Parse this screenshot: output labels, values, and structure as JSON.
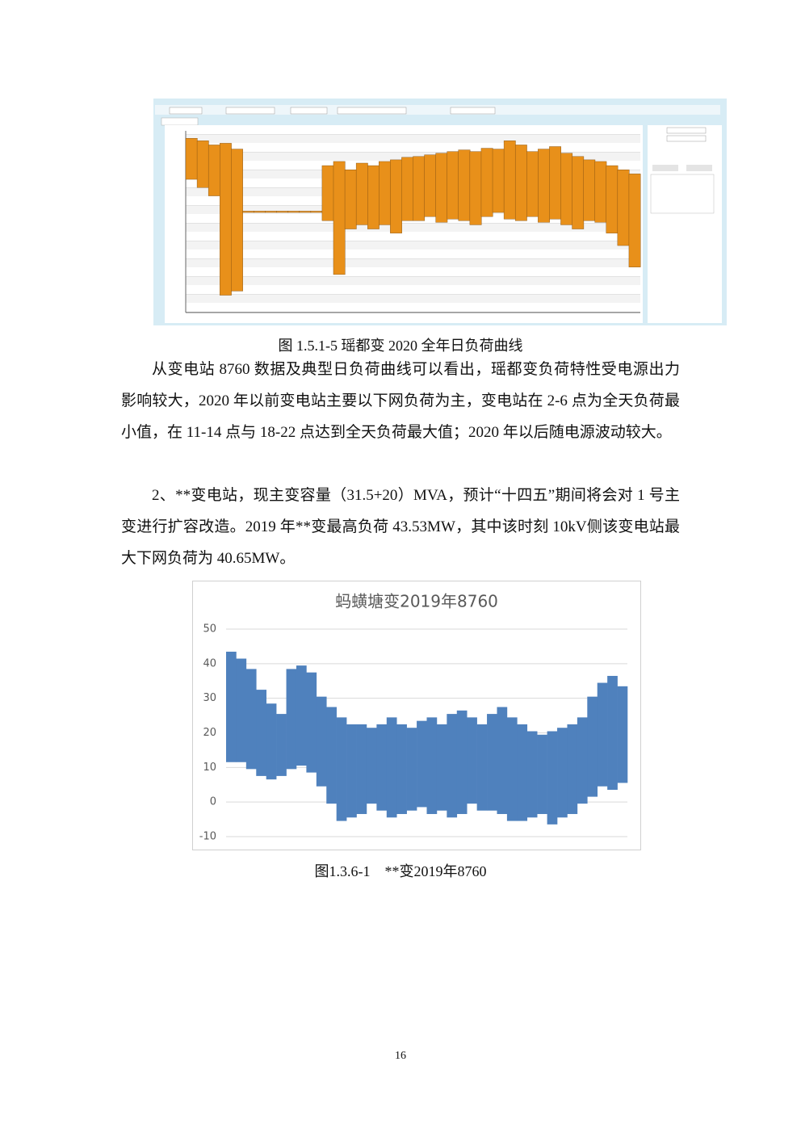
{
  "captions": [
    "图 1.5.1-5  瑶都变 2020 全年日负荷曲线",
    "图1.3.6-1　**变2019年8760"
  ],
  "paragraphs": [
    "从变电站 8760 数据及典型日负荷曲线可以看出，瑶都变负荷特性受电源出力影响较大，2020 年以前变电站主要以下网负荷为主，变电站在 2-6 点为全天负荷最小值，在 11-14 点与 18-22 点达到全天负荷最大值；2020 年以后随电源波动较大。",
    "2、**变电站，现主变容量（31.5+20）MVA，预计“十四五”期间将会对 1 号主变进行扩容改造。2019 年**变最高负荷 43.53MW，其中该时刻 10kV侧该变电站最大下网负荷为 40.65MW。"
  ],
  "page_number": "16",
  "chart_data": [
    {
      "type": "band",
      "ylim": [
        -110,
        90
      ],
      "series": [
        {
          "color": "#e8901a",
          "values": [
            88,
            85,
            80,
            82,
            75,
            0,
            0,
            0,
            0,
            0,
            0,
            0,
            55,
            60,
            50,
            58,
            55,
            60,
            62,
            65,
            66,
            68,
            70,
            72,
            74,
            72,
            76,
            75,
            85,
            80,
            72,
            75,
            78,
            70,
            66,
            62,
            60,
            55,
            50,
            45
          ]
        },
        {
          "color": "#e8901a",
          "values": [
            40,
            30,
            20,
            -100,
            -95,
            0,
            0,
            0,
            0,
            0,
            0,
            0,
            -10,
            -75,
            -20,
            -15,
            -20,
            -15,
            -25,
            -10,
            -10,
            -5,
            -12,
            -8,
            -10,
            -15,
            -5,
            0,
            -8,
            -10,
            -5,
            -12,
            -8,
            -15,
            -20,
            -10,
            -12,
            -25,
            -40,
            -66
          ]
        }
      ]
    },
    {
      "type": "band",
      "title": "蚂蟥塘变2019年8760",
      "ylim": [
        -10,
        50
      ],
      "yticks": [
        -10,
        0,
        10,
        20,
        30,
        40,
        50
      ],
      "grid": true,
      "series": [
        {
          "color": "#4f81bd",
          "values": [
            43,
            41,
            38,
            32,
            28,
            25,
            38,
            39,
            37,
            30,
            27,
            24,
            22,
            22,
            21,
            22,
            24,
            22,
            21,
            23,
            24,
            22,
            25,
            26,
            24,
            22,
            25,
            27,
            24,
            22,
            20,
            19,
            20,
            21,
            22,
            24,
            30,
            34,
            36,
            33
          ]
        },
        {
          "color": "#4f81bd",
          "values": [
            12,
            12,
            10,
            8,
            7,
            8,
            10,
            11,
            9,
            5,
            0,
            -5,
            -4,
            -3,
            0,
            -2,
            -4,
            -3,
            -2,
            -1,
            -3,
            -2,
            -4,
            -3,
            0,
            -2,
            -2,
            -3,
            -5,
            -5,
            -4,
            -3,
            -6,
            -4,
            -3,
            0,
            2,
            5,
            4,
            6
          ]
        }
      ]
    }
  ]
}
